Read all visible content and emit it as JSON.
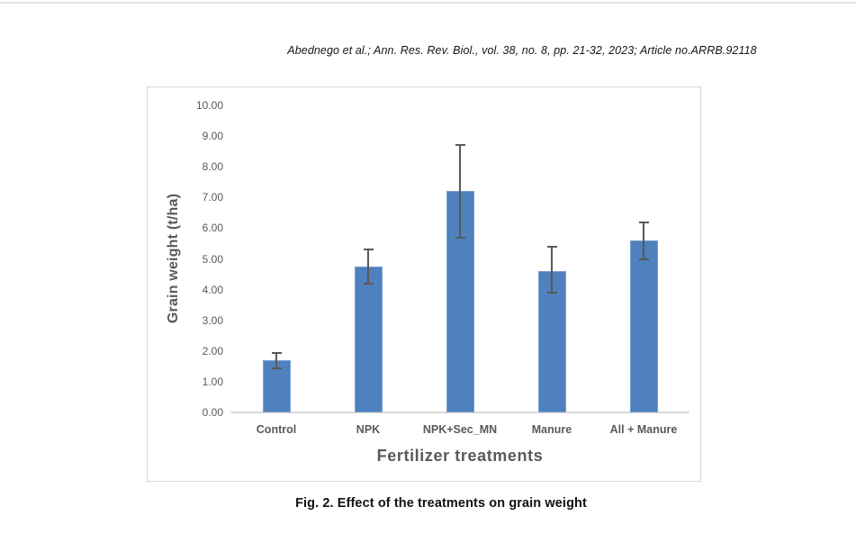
{
  "page": {
    "header": "Abednego et al.; Ann. Res. Rev. Biol., vol. 38, no. 8, pp. 21-32, 2023; Article no.ARRB.92118",
    "caption": "Fig. 2. Effect of the treatments on grain weight"
  },
  "chart_data": {
    "type": "bar",
    "title": "",
    "xlabel": "Fertilizer treatments",
    "ylabel": "Grain weight (t/ha)",
    "categories": [
      "Control",
      "NPK",
      "NPK+Sec_MN",
      "Manure",
      "All + Manure"
    ],
    "values": [
      1.7,
      4.75,
      7.2,
      4.6,
      5.6
    ],
    "error_high": [
      1.95,
      5.3,
      8.7,
      5.4,
      6.2
    ],
    "error_low": [
      1.45,
      4.2,
      5.7,
      3.9,
      5.0
    ],
    "ylim": [
      0,
      10
    ],
    "ytick_step": 1,
    "ytick_decimals": 2,
    "grid": false,
    "legend": false,
    "bar_color": "#4E81BD",
    "bar_edge_color": "#7BA0D0",
    "error_bar_color": "#595959",
    "axis_line_color": "#d9d9d9",
    "label_color": "#595959"
  }
}
